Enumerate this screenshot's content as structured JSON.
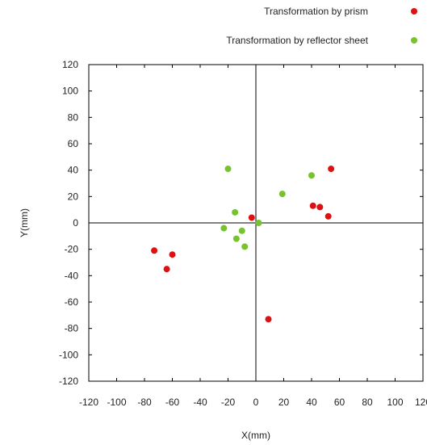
{
  "chart_data": {
    "type": "scatter",
    "title": "",
    "xlabel": "X(mm)",
    "ylabel": "Y(mm)",
    "xlim": [
      -120,
      120
    ],
    "ylim": [
      -120,
      120
    ],
    "xticks": [
      -120,
      -100,
      -80,
      -60,
      -40,
      -20,
      0,
      20,
      40,
      60,
      80,
      100,
      120
    ],
    "yticks": [
      -120,
      -100,
      -80,
      -60,
      -40,
      -20,
      0,
      20,
      40,
      60,
      80,
      100,
      120
    ],
    "grid": false,
    "zero_lines": true,
    "legend_position": "top-right",
    "series": [
      {
        "name": "Transformation by prism",
        "color": "#dd1111",
        "points": [
          [
            -73,
            -21
          ],
          [
            -64,
            -35
          ],
          [
            -60,
            -24
          ],
          [
            -3,
            4
          ],
          [
            9,
            -73
          ],
          [
            41,
            13
          ],
          [
            46,
            12
          ],
          [
            52,
            5
          ],
          [
            54,
            41
          ]
        ]
      },
      {
        "name": "Transformation by reflector sheet",
        "color": "#77c22d",
        "points": [
          [
            -20,
            41
          ],
          [
            -23,
            -4
          ],
          [
            -15,
            8
          ],
          [
            -14,
            -12
          ],
          [
            -10,
            -6
          ],
          [
            -8,
            -18
          ],
          [
            2,
            0
          ],
          [
            19,
            22
          ],
          [
            40,
            36
          ]
        ]
      }
    ]
  }
}
